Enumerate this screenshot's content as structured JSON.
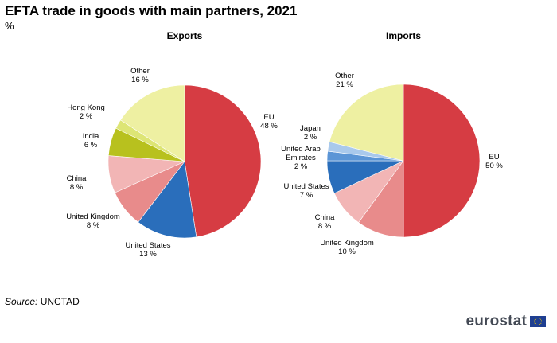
{
  "title": "EFTA trade in goods with main partners, 2021",
  "subtitle": "%",
  "source": {
    "label": "Source:",
    "value": "UNCTAD"
  },
  "logo": {
    "text": "eurostat"
  },
  "chart_data": [
    {
      "type": "pie",
      "title": "Exports",
      "slices": [
        {
          "label": "EU",
          "value_label": "48 %",
          "value": 48,
          "color": "#d63c43"
        },
        {
          "label": "United States",
          "value_label": "13 %",
          "value": 13,
          "color": "#2a6ebb"
        },
        {
          "label": "United Kingdom",
          "value_label": "8 %",
          "value": 8,
          "color": "#e88b8b"
        },
        {
          "label": "China",
          "value_label": "8 %",
          "value": 8,
          "color": "#f2b5b5"
        },
        {
          "label": "India",
          "value_label": "6 %",
          "value": 6,
          "color": "#b8c11e"
        },
        {
          "label": "Hong Kong",
          "value_label": "2 %",
          "value": 2,
          "color": "#dde575"
        },
        {
          "label": "Other",
          "value_label": "16 %",
          "value": 16,
          "color": "#eef0a2"
        }
      ]
    },
    {
      "type": "pie",
      "title": "Imports",
      "slices": [
        {
          "label": "EU",
          "value_label": "50 %",
          "value": 50,
          "color": "#d63c43"
        },
        {
          "label": "United Kingdom",
          "value_label": "10 %",
          "value": 10,
          "color": "#e88b8b"
        },
        {
          "label": "China",
          "value_label": "8 %",
          "value": 8,
          "color": "#f2b5b5"
        },
        {
          "label": "United States",
          "value_label": "7 %",
          "value": 7,
          "color": "#2a6ebb"
        },
        {
          "label": "United Arab Emirates",
          "value_label": "2 %",
          "value": 2,
          "color": "#5b95d6"
        },
        {
          "label": "Japan",
          "value_label": "2 %",
          "value": 2,
          "color": "#a9c9ec"
        },
        {
          "label": "Other",
          "value_label": "21 %",
          "value": 21,
          "color": "#eef0a2"
        }
      ]
    }
  ]
}
